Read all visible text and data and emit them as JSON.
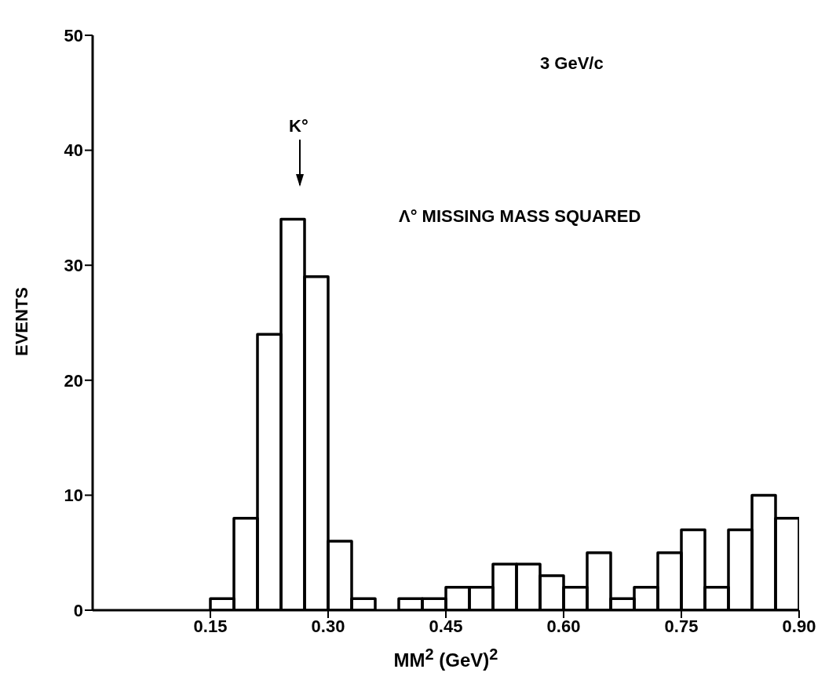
{
  "chart_data": {
    "type": "histogram",
    "xlabel": "MM$^{2}$ (GeV)$^{2}$",
    "ylabel": "EVENTS",
    "bins": [
      0.15,
      0.18,
      0.21,
      0.24,
      0.27,
      0.3,
      0.33,
      0.36,
      0.39,
      0.42,
      0.45,
      0.48,
      0.51,
      0.54,
      0.57,
      0.6,
      0.63,
      0.66,
      0.69,
      0.72,
      0.75,
      0.78,
      0.81,
      0.84,
      0.87,
      0.9
    ],
    "values": [
      1,
      8,
      24,
      34,
      29,
      6,
      1,
      0,
      1,
      1,
      2,
      2,
      4,
      4,
      3,
      2,
      5,
      1,
      2,
      5,
      7,
      2,
      7,
      10,
      8
    ],
    "color": "#000000",
    "xlim": [
      0,
      0.9
    ],
    "xticks": [
      {
        "value": 0.15,
        "label": "0.15"
      },
      {
        "value": 0.3,
        "label": "0.30"
      },
      {
        "value": 0.45,
        "label": "0.45"
      },
      {
        "value": 0.6,
        "label": "0.60"
      },
      {
        "value": 0.75,
        "label": "0.75"
      },
      {
        "value": 0.9,
        "label": "0.90"
      }
    ],
    "ylim": [
      0,
      50
    ],
    "yticks": [
      0,
      10,
      20,
      30,
      40,
      50
    ],
    "grid": false,
    "annotations": [
      "K°",
      "3 GeV/c",
      "Λ° MISSING MASS SQUARED"
    ]
  }
}
